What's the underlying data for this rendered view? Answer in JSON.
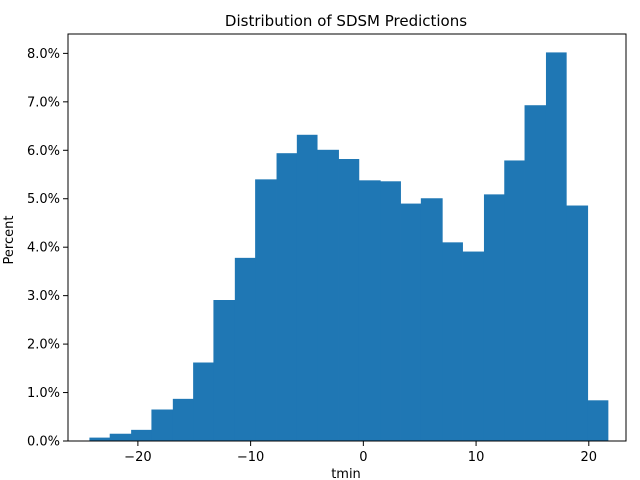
{
  "chart_data": {
    "type": "bar",
    "title": "Distribution of SDSM Predictions",
    "xlabel": "tmin",
    "ylabel": "Percent",
    "bar_color": "#1f77b4",
    "xlim": [
      -26.2,
      23.3
    ],
    "ylim": [
      0,
      8.4
    ],
    "grid": false,
    "x_ticks": [
      -20,
      -10,
      0,
      10,
      20
    ],
    "x_tick_labels": [
      "−20",
      "−10",
      "0",
      "10",
      "20"
    ],
    "y_ticks": [
      0,
      1,
      2,
      3,
      4,
      5,
      6,
      7,
      8
    ],
    "y_tick_labels": [
      "0.0%",
      "1.0%",
      "2.0%",
      "3.0%",
      "4.0%",
      "5.0%",
      "6.0%",
      "7.0%",
      "8.0%"
    ],
    "bins": [
      {
        "x0": -24.3,
        "x1": -22.5,
        "value": 0.07
      },
      {
        "x0": -22.5,
        "x1": -20.6,
        "value": 0.15
      },
      {
        "x0": -20.6,
        "x1": -18.8,
        "value": 0.23
      },
      {
        "x0": -18.8,
        "x1": -16.9,
        "value": 0.65
      },
      {
        "x0": -16.9,
        "x1": -15.1,
        "value": 0.87
      },
      {
        "x0": -15.1,
        "x1": -13.3,
        "value": 1.62
      },
      {
        "x0": -13.3,
        "x1": -11.4,
        "value": 2.91
      },
      {
        "x0": -11.4,
        "x1": -9.6,
        "value": 3.78
      },
      {
        "x0": -9.6,
        "x1": -7.7,
        "value": 5.4
      },
      {
        "x0": -7.7,
        "x1": -5.9,
        "value": 5.94
      },
      {
        "x0": -5.9,
        "x1": -4.1,
        "value": 6.32
      },
      {
        "x0": -4.1,
        "x1": -2.2,
        "value": 6.01
      },
      {
        "x0": -2.2,
        "x1": -0.4,
        "value": 5.82
      },
      {
        "x0": -0.4,
        "x1": 1.5,
        "value": 5.38
      },
      {
        "x0": 1.5,
        "x1": 3.3,
        "value": 5.36
      },
      {
        "x0": 3.3,
        "x1": 5.1,
        "value": 4.9
      },
      {
        "x0": 5.1,
        "x1": 7.0,
        "value": 5.01
      },
      {
        "x0": 7.0,
        "x1": 8.8,
        "value": 4.1
      },
      {
        "x0": 8.8,
        "x1": 10.7,
        "value": 3.91
      },
      {
        "x0": 10.7,
        "x1": 12.5,
        "value": 5.09
      },
      {
        "x0": 12.5,
        "x1": 14.3,
        "value": 5.79
      },
      {
        "x0": 14.3,
        "x1": 16.2,
        "value": 6.93
      },
      {
        "x0": 16.2,
        "x1": 18.0,
        "value": 8.02
      },
      {
        "x0": 18.0,
        "x1": 19.9,
        "value": 4.86
      },
      {
        "x0": 19.9,
        "x1": 21.7,
        "value": 0.84
      }
    ]
  }
}
